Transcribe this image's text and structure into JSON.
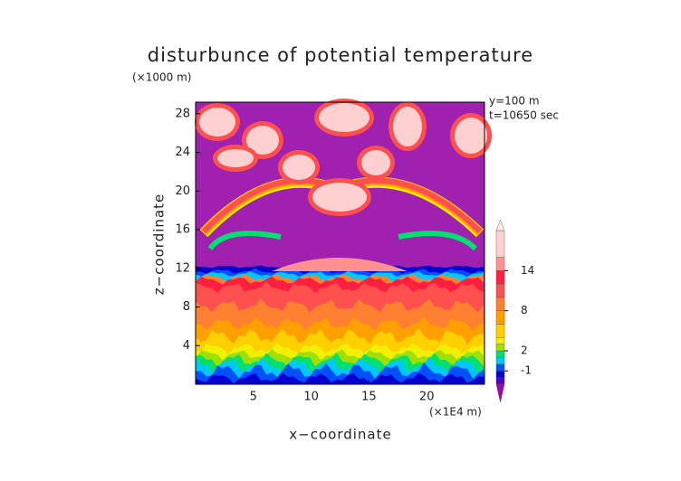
{
  "chart_data": {
    "type": "contour",
    "title": "disturbunce of potential temperature",
    "y_unit": "(×1000 m)",
    "x_unit": "(×1E4 m)",
    "annotations": [
      "y=100 m",
      "t=10650 sec"
    ],
    "xlabel": "x−coordinate",
    "ylabel": "z−coordinate",
    "xlim": [
      0,
      25
    ],
    "xticks": [
      5,
      10,
      15,
      20
    ],
    "ylim": [
      0,
      29.2
    ],
    "yticks": [
      4,
      8,
      12,
      16,
      20,
      24,
      28
    ],
    "background_color": "#a020b0",
    "colorbar": {
      "bounds": [
        -3,
        -2,
        -1,
        0,
        1,
        2,
        3,
        4,
        6,
        8,
        10,
        12,
        14,
        16,
        20
      ],
      "colors": [
        "#5000c0",
        "#0000d0",
        "#0050ff",
        "#00c8ff",
        "#00e070",
        "#a0e000",
        "#f0f000",
        "#ffd000",
        "#ffa000",
        "#ff8030",
        "#ff5050",
        "#ff2040",
        "#ff9090",
        "#ffd0d0"
      ],
      "under_color": "#a000b0",
      "over_color": "#ffe8e8",
      "ticks": [
        -1,
        2,
        8,
        14
      ]
    }
  }
}
